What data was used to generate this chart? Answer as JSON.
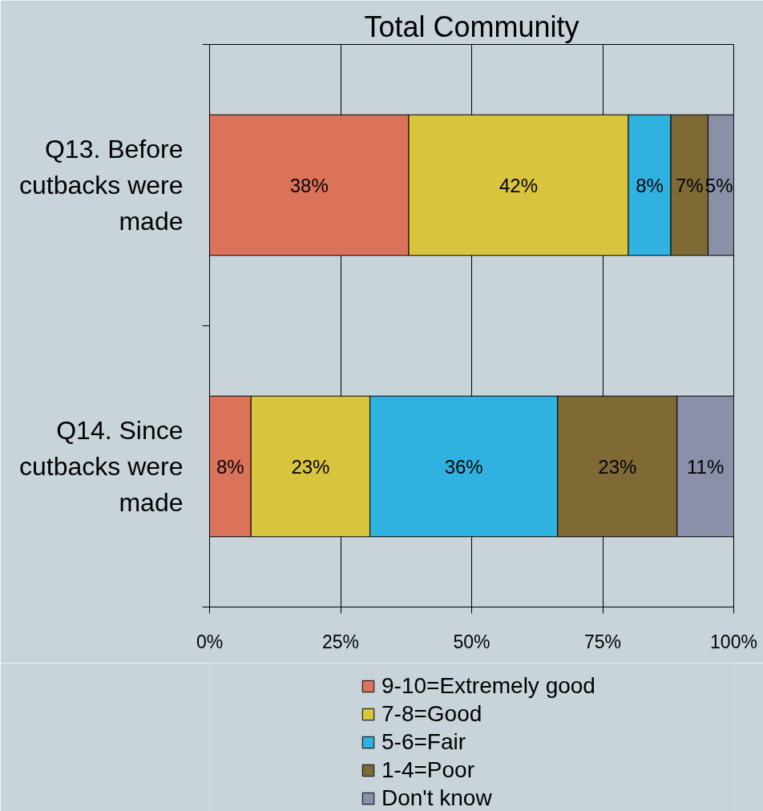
{
  "chart_data": {
    "type": "bar",
    "orientation": "horizontal",
    "stacked": true,
    "title": "Total Community",
    "categories": [
      "Q13. Before cutbacks were made",
      "Q14. Since cutbacks were made"
    ],
    "series": [
      {
        "name": "9-10=Extremely good",
        "color": "#db735b",
        "values": [
          38.0,
          7.9
        ],
        "value_labels": [
          "38%",
          "8%"
        ]
      },
      {
        "name": "7-8=Good",
        "color": "#d9c43e",
        "values": [
          41.9,
          22.7
        ],
        "value_labels": [
          "42%",
          "23%"
        ]
      },
      {
        "name": "5-6=Fair",
        "color": "#2fb2df",
        "values": [
          8.1,
          35.8
        ],
        "value_labels": [
          "8%",
          "36%"
        ]
      },
      {
        "name": "1-4=Poor",
        "color": "#7f6a36",
        "values": [
          7.1,
          22.8
        ],
        "value_labels": [
          "7%",
          "23%"
        ]
      },
      {
        "name": "Don't know",
        "color": "#8b8fa8",
        "values": [
          4.9,
          10.8
        ],
        "value_labels": [
          "5%",
          "11%"
        ]
      }
    ],
    "xlim": [
      0,
      100
    ],
    "xticks": [
      {
        "value": 0,
        "label": "0%"
      },
      {
        "value": 25,
        "label": "25%"
      },
      {
        "value": 50,
        "label": "50%"
      },
      {
        "value": 75,
        "label": "75%"
      },
      {
        "value": 100,
        "label": "100%"
      }
    ],
    "grid": "x",
    "legend": "bottom"
  }
}
